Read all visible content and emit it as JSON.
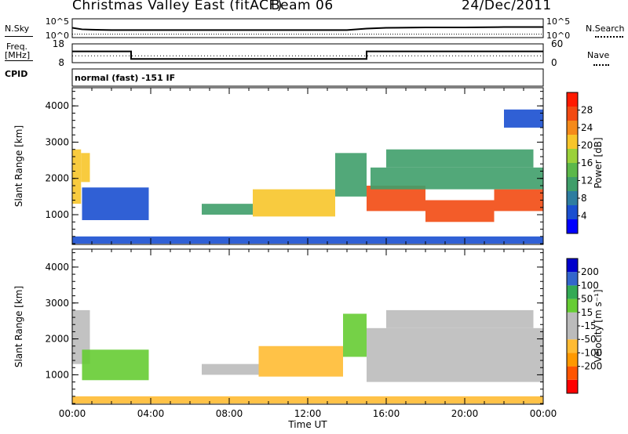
{
  "header": {
    "station": "Christmas Valley East (fitACF)",
    "beam": "Beam 06",
    "date": "24/Dec/2011"
  },
  "strip_labels": {
    "nsky": "N.Sky",
    "nsearch": "N.Search",
    "freq_line1": "Freq.",
    "freq_line2": "[MHz]",
    "nave": "Nave",
    "cpid": "CPID",
    "cpid_value": "normal (fast) -151 IF"
  },
  "colors": {
    "power_scale": [
      "#0000ff",
      "#1a4fd0",
      "#2e7da0",
      "#3f9e6a",
      "#5cb84a",
      "#9bd13a",
      "#f7c52a",
      "#f58a1a",
      "#f24a12",
      "#ff1a00"
    ],
    "velocity_scale": [
      "#ff0000",
      "#ff5500",
      "#ff9900",
      "#ffbb33",
      "#bbbbbb",
      "#bbbbbb",
      "#66cc33",
      "#33aa55",
      "#3366cc",
      "#0000cc"
    ]
  },
  "chart_data": [
    {
      "type": "line",
      "panel": "noise",
      "left_axis": {
        "scale": "log",
        "ticks": [
          "10^5",
          "10^0"
        ]
      },
      "right_axis": {
        "scale": "log",
        "ticks": [
          "10^5",
          "10^0"
        ]
      },
      "series": [
        {
          "name": "N.Sky",
          "x": [
            0,
            0.5,
            1,
            2,
            4,
            6,
            8,
            10,
            12,
            14,
            15,
            16,
            18,
            20,
            22,
            24
          ],
          "values": [
            2.6,
            2.2,
            2.1,
            2.0,
            2.0,
            2.0,
            2.0,
            2.0,
            2.0,
            2.0,
            2.4,
            2.6,
            2.7,
            2.7,
            2.8,
            2.8
          ]
        },
        {
          "name": "N.Search",
          "x": [
            0,
            2,
            4,
            8,
            12,
            16,
            20,
            24
          ],
          "values": [
            0.9,
            0.9,
            0.9,
            0.9,
            0.9,
            0.9,
            0.9,
            0.9
          ]
        }
      ]
    },
    {
      "type": "line",
      "panel": "frequency",
      "left_axis": {
        "label": "Freq. [MHz]",
        "ticks": [
          18,
          8
        ],
        "ylim": [
          8,
          18
        ]
      },
      "right_axis": {
        "label": "Nave",
        "ticks": [
          60,
          0
        ],
        "ylim": [
          0,
          60
        ]
      },
      "series": [
        {
          "name": "Freq.",
          "x": [
            0,
            3,
            3,
            15,
            15,
            24
          ],
          "values": [
            14,
            14,
            10,
            10,
            14,
            14
          ]
        },
        {
          "name": "Nave",
          "x": [
            0,
            24
          ],
          "values": [
            22,
            22
          ]
        }
      ]
    },
    {
      "type": "heatmap",
      "panel": "power",
      "ylabel": "Slant Range [km]",
      "xlim": [
        0,
        24
      ],
      "ylim": [
        180,
        4500
      ],
      "yticks": [
        1000,
        2000,
        3000,
        4000
      ],
      "colorbar": {
        "label": "Power [dB]",
        "range": [
          0,
          32
        ],
        "ticks": [
          4,
          8,
          12,
          16,
          20,
          24,
          28
        ]
      },
      "regions": [
        {
          "t0": 0.0,
          "t1": 0.45,
          "r0": 1300,
          "r1": 2800,
          "value": 22
        },
        {
          "t0": 0.45,
          "t1": 0.9,
          "r0": 1900,
          "r1": 2700,
          "value": 20
        },
        {
          "t0": 0.5,
          "t1": 3.9,
          "r0": 850,
          "r1": 1750,
          "value": 6
        },
        {
          "t0": 6.6,
          "t1": 9.2,
          "r0": 1000,
          "r1": 1300,
          "value": 12
        },
        {
          "t0": 9.2,
          "t1": 13.4,
          "r0": 950,
          "r1": 1700,
          "value": 22
        },
        {
          "t0": 13.4,
          "t1": 15.0,
          "r0": 1500,
          "r1": 2700,
          "value": 10
        },
        {
          "t0": 15.0,
          "t1": 18.0,
          "r0": 1100,
          "r1": 1800,
          "value": 28
        },
        {
          "t0": 18.0,
          "t1": 21.5,
          "r0": 800,
          "r1": 1400,
          "value": 28
        },
        {
          "t0": 21.5,
          "t1": 24.0,
          "r0": 1100,
          "r1": 1700,
          "value": 26
        },
        {
          "t0": 15.2,
          "t1": 24.0,
          "r0": 1700,
          "r1": 2300,
          "value": 12
        },
        {
          "t0": 16.0,
          "t1": 23.5,
          "r0": 2300,
          "r1": 2800,
          "value": 12
        },
        {
          "t0": 22.0,
          "t1": 24.0,
          "r0": 3400,
          "r1": 3900,
          "value": 6
        },
        {
          "t0": 0.0,
          "t1": 24.0,
          "r0": 200,
          "r1": 400,
          "value": 6
        }
      ]
    },
    {
      "type": "heatmap",
      "panel": "velocity",
      "xlabel": "Time UT",
      "ylabel": "Slant Range [km]",
      "xlim": [
        0,
        24
      ],
      "ylim": [
        180,
        4500
      ],
      "xticks": [
        "00:00",
        "04:00",
        "08:00",
        "12:00",
        "16:00",
        "20:00",
        "00:00"
      ],
      "yticks": [
        1000,
        2000,
        3000,
        4000
      ],
      "colorbar": {
        "label": "Velocity [m s⁻¹]",
        "ticks": [
          200,
          100,
          50,
          15,
          -15,
          -50,
          -100,
          -200
        ]
      },
      "regions": [
        {
          "t0": 0.0,
          "t1": 0.9,
          "r0": 1300,
          "r1": 2800,
          "value": 0
        },
        {
          "t0": 0.5,
          "t1": 3.9,
          "r0": 850,
          "r1": 1700,
          "value": 40
        },
        {
          "t0": 6.6,
          "t1": 9.5,
          "r0": 1000,
          "r1": 1300,
          "value": 0
        },
        {
          "t0": 9.5,
          "t1": 13.8,
          "r0": 950,
          "r1": 1800,
          "value": -40
        },
        {
          "t0": 13.8,
          "t1": 15.0,
          "r0": 1500,
          "r1": 2700,
          "value": 40
        },
        {
          "t0": 15.0,
          "t1": 24.0,
          "r0": 800,
          "r1": 2300,
          "value": 0
        },
        {
          "t0": 16.0,
          "t1": 23.5,
          "r0": 2300,
          "r1": 2800,
          "value": 0
        },
        {
          "t0": 0.0,
          "t1": 24.0,
          "r0": 200,
          "r1": 400,
          "value": -40
        }
      ]
    }
  ]
}
